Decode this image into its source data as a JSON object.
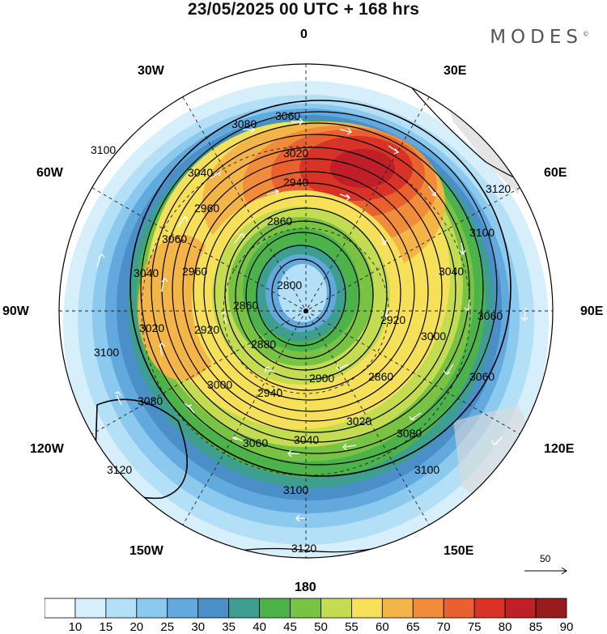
{
  "title": "23/05/2025  00 UTC  + 168 hrs",
  "brand": "MODES",
  "brand_mark": "©",
  "longitude_labels": {
    "n": "0",
    "e30": "30E",
    "e60": "60E",
    "e90": "90E",
    "e120": "120E",
    "e150": "150E",
    "s": "180",
    "w150": "150W",
    "w120": "120W",
    "w90": "90W",
    "w60": "60W",
    "w30": "30W"
  },
  "contour_labels": [
    "2800",
    "2860",
    "2880",
    "2900",
    "2920",
    "2940",
    "2960",
    "3000",
    "3020",
    "3040",
    "3060",
    "3080",
    "3100",
    "3120"
  ],
  "wind_scale_label": "50",
  "colorbar": {
    "ticks": [
      "10",
      "15",
      "20",
      "25",
      "30",
      "35",
      "40",
      "45",
      "50",
      "55",
      "60",
      "65",
      "70",
      "75",
      "80",
      "85",
      "90"
    ],
    "colors": [
      "#ffffff",
      "#d7effb",
      "#b3e0f6",
      "#8cc9ee",
      "#62a9dd",
      "#4a8fc8",
      "#3e9e8f",
      "#4bb34a",
      "#78c244",
      "#c4dc52",
      "#f6e05a",
      "#f4b548",
      "#f08c3a",
      "#e8612e",
      "#d93328",
      "#bf1f26",
      "#991b1e"
    ]
  },
  "colors": {
    "land": "#d9d9d9",
    "contour": "#000000",
    "wind": "#ffffff"
  }
}
